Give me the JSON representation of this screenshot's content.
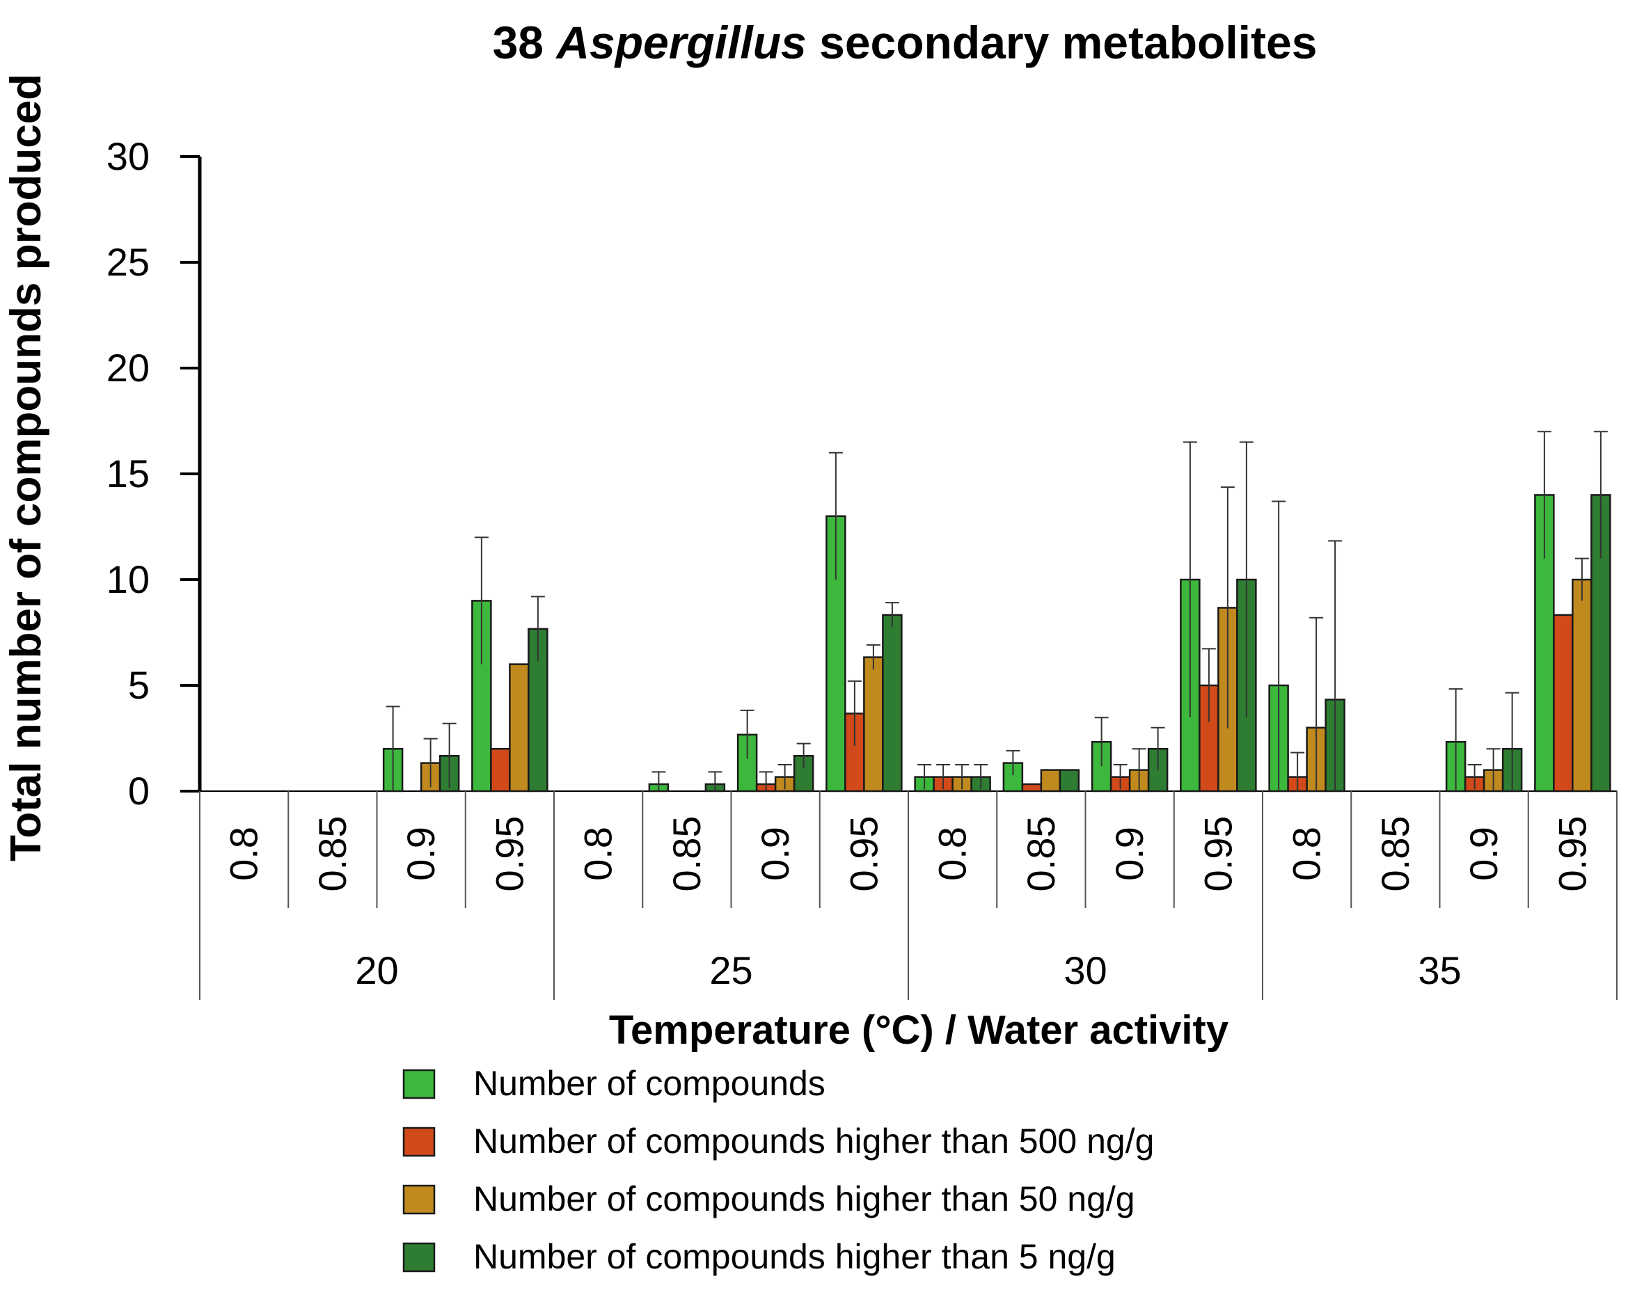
{
  "chart_data": {
    "type": "bar",
    "title_number": "38",
    "title_genus": "Aspergillus",
    "title_rest": "secondary metabolites",
    "xlabel": "Temperature (°C) / Water activity",
    "ylabel": "Total number of compounds produced",
    "ylim": [
      0,
      30
    ],
    "yticks": [
      0,
      5,
      10,
      15,
      20,
      25,
      30
    ],
    "groups": [
      "20",
      "25",
      "30",
      "35"
    ],
    "subcategories": [
      "0.8",
      "0.85",
      "0.9",
      "0.95"
    ],
    "series": [
      {
        "name": "Number of compounds",
        "color": "#3cb83c",
        "values": [
          0,
          0,
          2,
          9,
          0,
          0.33,
          2.67,
          13,
          0.67,
          1.33,
          2.33,
          10,
          5,
          0,
          2.33,
          14
        ],
        "errors": [
          0,
          0,
          2,
          3,
          0,
          0.58,
          1.15,
          3,
          0.58,
          0.58,
          1.15,
          6.5,
          8.7,
          0,
          2.5,
          3
        ]
      },
      {
        "name": "Number of compounds higher than 500 ng/g",
        "color": "#d24a1a",
        "values": [
          0,
          0,
          0,
          2,
          0,
          0,
          0.33,
          3.67,
          0.67,
          0.33,
          0.67,
          5,
          0.67,
          0,
          0.67,
          8.33
        ],
        "errors": [
          0,
          0,
          0,
          0,
          0,
          0,
          0.58,
          1.53,
          0.58,
          0,
          0.58,
          1.73,
          1.15,
          0,
          0.58,
          0
        ]
      },
      {
        "name": "Number of compounds higher than 50 ng/g",
        "color": "#c08a1e",
        "values": [
          0,
          0,
          1.33,
          6,
          0,
          0,
          0.67,
          6.33,
          0.67,
          1,
          1,
          8.67,
          3,
          0,
          1,
          10
        ],
        "errors": [
          0,
          0,
          1.15,
          0,
          0,
          0,
          0.58,
          0.58,
          0.58,
          0,
          1,
          5.7,
          5.2,
          0,
          1,
          1
        ]
      },
      {
        "name": "Number of compounds higher than 5 ng/g",
        "color": "#2e7d32",
        "values": [
          0,
          0,
          1.67,
          7.67,
          0,
          0.33,
          1.67,
          8.33,
          0.67,
          1,
          2,
          10,
          4.33,
          0,
          2,
          14
        ],
        "errors": [
          0,
          0,
          1.53,
          1.53,
          0,
          0.58,
          0.58,
          0.58,
          0.58,
          0,
          1,
          6.5,
          7.5,
          0,
          2.65,
          3
        ]
      }
    ],
    "legend_position": "bottom-center",
    "grid": false
  }
}
